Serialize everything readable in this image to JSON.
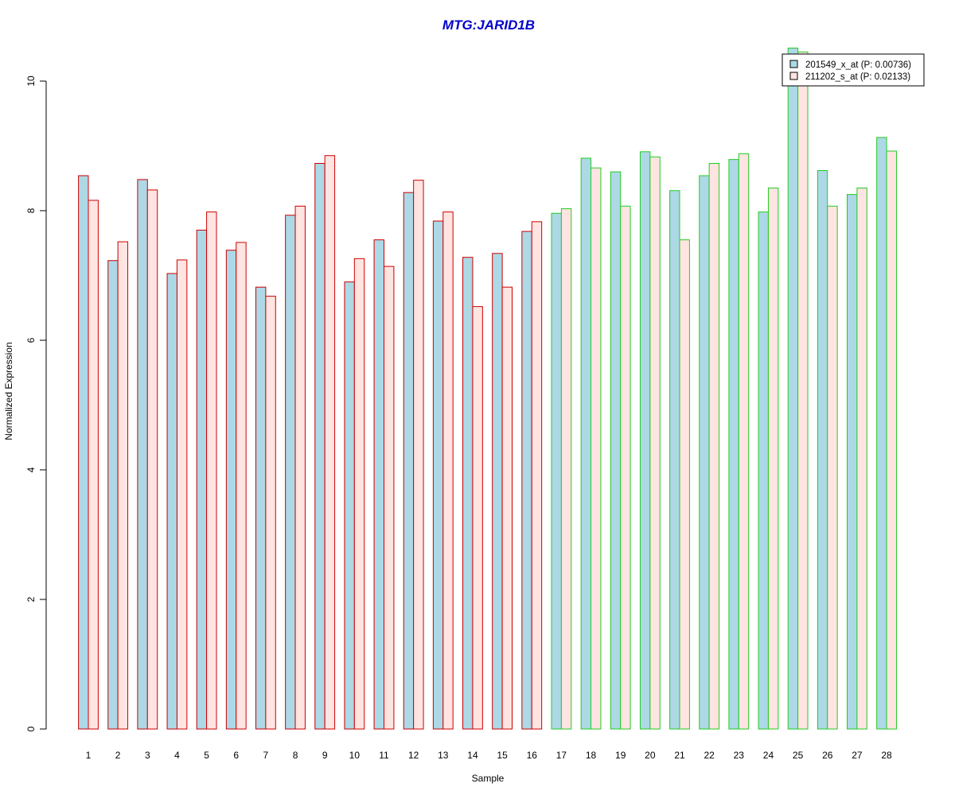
{
  "chart_data": {
    "type": "bar",
    "title": "MTG:JARID1B",
    "xlabel": "Sample",
    "ylabel": "Normalized Expression",
    "ylim": [
      0,
      10
    ],
    "yticks": [
      "0",
      "2",
      "4",
      "6",
      "8",
      "10"
    ],
    "categories": [
      "1",
      "2",
      "3",
      "4",
      "5",
      "6",
      "7",
      "8",
      "9",
      "10",
      "11",
      "12",
      "13",
      "14",
      "15",
      "16",
      "17",
      "18",
      "19",
      "20",
      "21",
      "22",
      "23",
      "24",
      "25",
      "26",
      "27",
      "28"
    ],
    "group_border_colors": [
      "#CC0000",
      "#CC0000",
      "#CC0000",
      "#CC0000",
      "#CC0000",
      "#CC0000",
      "#CC0000",
      "#CC0000",
      "#CC0000",
      "#CC0000",
      "#CC0000",
      "#CC0000",
      "#CC0000",
      "#CC0000",
      "#CC0000",
      "#CC0000",
      "#22CC22",
      "#22CC22",
      "#22CC22",
      "#22CC22",
      "#22CC22",
      "#22CC22",
      "#22CC22",
      "#22CC22",
      "#22CC22",
      "#22CC22",
      "#22CC22",
      "#22CC22"
    ],
    "series": [
      {
        "name": "201549_x_at (P: 0.00736)",
        "fill": "#ADD8E6",
        "values": [
          8.54,
          7.23,
          8.48,
          7.03,
          7.7,
          7.39,
          6.82,
          7.93,
          8.73,
          6.9,
          7.55,
          8.28,
          7.84,
          7.28,
          7.34,
          7.68,
          7.96,
          8.81,
          8.6,
          8.91,
          8.31,
          8.54,
          8.79,
          7.98,
          10.51,
          8.62,
          8.25,
          9.13
        ]
      },
      {
        "name": "211202_s_at (P: 0.02133)",
        "fill": "#FFE4E1",
        "values": [
          8.16,
          7.52,
          8.32,
          7.24,
          7.98,
          7.51,
          6.68,
          8.07,
          8.85,
          7.26,
          7.14,
          8.47,
          7.98,
          6.52,
          6.82,
          7.83,
          8.03,
          8.66,
          8.07,
          8.83,
          7.55,
          8.73,
          8.88,
          8.35,
          10.45,
          8.07,
          8.35,
          8.92
        ]
      }
    ],
    "legend_position": "top-right",
    "grid": false
  }
}
